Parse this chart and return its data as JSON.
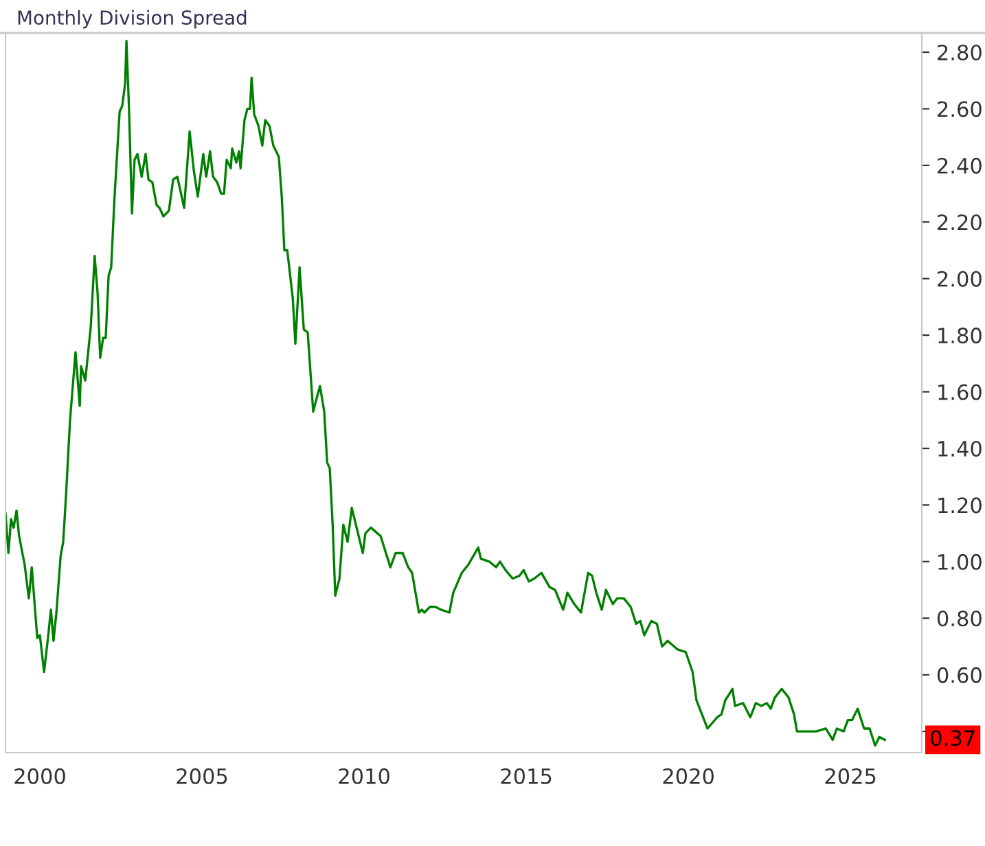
{
  "chart_data": {
    "type": "line",
    "title": "Monthly Division Spread",
    "x": [
      1998.94,
      1999.03,
      1999.11,
      1999.19,
      1999.28,
      1999.36,
      1999.53,
      1999.66,
      1999.75,
      1999.92,
      2000.0,
      2000.13,
      2000.25,
      2000.34,
      2000.42,
      2000.51,
      2000.64,
      2000.72,
      2000.81,
      2000.93,
      2001.1,
      2001.23,
      2001.27,
      2001.4,
      2001.57,
      2001.69,
      2001.78,
      2001.86,
      2001.95,
      2002.03,
      2002.12,
      2002.2,
      2002.29,
      2002.33,
      2002.46,
      2002.54,
      2002.63,
      2002.67,
      2002.75,
      2002.84,
      2002.92,
      2003.01,
      2003.14,
      2003.26,
      2003.35,
      2003.47,
      2003.6,
      2003.69,
      2003.81,
      2003.98,
      2004.11,
      2004.24,
      2004.45,
      2004.62,
      2004.75,
      2004.87,
      2005.04,
      2005.13,
      2005.25,
      2005.34,
      2005.47,
      2005.59,
      2005.68,
      2005.76,
      2005.89,
      2005.93,
      2006.06,
      2006.14,
      2006.19,
      2006.31,
      2006.4,
      2006.48,
      2006.53,
      2006.61,
      2006.74,
      2006.86,
      2006.95,
      2007.08,
      2007.2,
      2007.37,
      2007.46,
      2007.54,
      2007.63,
      2007.8,
      2007.88,
      2008.01,
      2008.14,
      2008.26,
      2008.43,
      2008.52,
      2008.64,
      2008.77,
      2008.86,
      2008.94,
      2009.03,
      2009.11,
      2009.24,
      2009.36,
      2009.49,
      2009.62,
      2009.79,
      2009.96,
      2010.04,
      2010.21,
      2010.51,
      2010.81,
      2010.97,
      2011.19,
      2011.36,
      2011.48,
      2011.69,
      2011.78,
      2011.86,
      2012.03,
      2012.2,
      2012.37,
      2012.63,
      2012.75,
      2013.01,
      2013.22,
      2013.52,
      2013.6,
      2013.86,
      2014.07,
      2014.19,
      2014.36,
      2014.58,
      2014.79,
      2014.92,
      2015.08,
      2015.25,
      2015.47,
      2015.72,
      2015.89,
      2016.14,
      2016.27,
      2016.48,
      2016.69,
      2016.91,
      2017.03,
      2017.16,
      2017.33,
      2017.46,
      2017.67,
      2017.8,
      2018.01,
      2018.22,
      2018.39,
      2018.52,
      2018.64,
      2018.86,
      2019.03,
      2019.19,
      2019.36,
      2019.66,
      2019.92,
      2020.13,
      2020.25,
      2020.59,
      2020.89,
      2021.02,
      2021.14,
      2021.36,
      2021.44,
      2021.69,
      2021.91,
      2022.08,
      2022.25,
      2022.42,
      2022.54,
      2022.67,
      2022.88,
      2023.09,
      2023.26,
      2023.35,
      2023.6,
      2023.81,
      2023.94,
      2024.24,
      2024.45,
      2024.58,
      2024.79,
      2024.92,
      2025.05,
      2025.22,
      2025.42,
      2025.59,
      2025.76,
      2025.89,
      2026.06
    ],
    "series": [
      {
        "color": "#008000",
        "values": [
          1.17,
          1.03,
          1.15,
          1.12,
          1.18,
          1.09,
          0.99,
          0.87,
          0.98,
          0.73,
          0.74,
          0.61,
          0.73,
          0.83,
          0.72,
          0.82,
          1.02,
          1.07,
          1.24,
          1.5,
          1.74,
          1.55,
          1.69,
          1.64,
          1.83,
          2.08,
          1.95,
          1.72,
          1.79,
          1.79,
          2.01,
          2.04,
          2.26,
          2.34,
          2.59,
          2.61,
          2.69,
          2.84,
          2.6,
          2.23,
          2.42,
          2.44,
          2.36,
          2.44,
          2.35,
          2.34,
          2.26,
          2.25,
          2.22,
          2.24,
          2.35,
          2.36,
          2.25,
          2.52,
          2.38,
          2.29,
          2.44,
          2.36,
          2.45,
          2.36,
          2.34,
          2.3,
          2.3,
          2.42,
          2.39,
          2.46,
          2.41,
          2.45,
          2.39,
          2.56,
          2.6,
          2.6,
          2.71,
          2.58,
          2.54,
          2.47,
          2.56,
          2.54,
          2.47,
          2.43,
          2.29,
          2.1,
          2.1,
          1.93,
          1.77,
          2.04,
          1.82,
          1.81,
          1.53,
          1.57,
          1.62,
          1.53,
          1.35,
          1.33,
          1.13,
          0.88,
          0.94,
          1.13,
          1.07,
          1.19,
          1.11,
          1.03,
          1.1,
          1.12,
          1.09,
          0.98,
          1.03,
          1.03,
          0.98,
          0.96,
          0.82,
          0.83,
          0.82,
          0.84,
          0.84,
          0.83,
          0.82,
          0.89,
          0.96,
          0.99,
          1.05,
          1.01,
          1.0,
          0.98,
          1.0,
          0.97,
          0.94,
          0.95,
          0.97,
          0.93,
          0.94,
          0.96,
          0.91,
          0.9,
          0.83,
          0.89,
          0.85,
          0.82,
          0.96,
          0.95,
          0.89,
          0.83,
          0.9,
          0.85,
          0.87,
          0.87,
          0.84,
          0.78,
          0.79,
          0.74,
          0.79,
          0.78,
          0.7,
          0.72,
          0.69,
          0.68,
          0.61,
          0.51,
          0.41,
          0.45,
          0.46,
          0.51,
          0.55,
          0.49,
          0.5,
          0.45,
          0.5,
          0.49,
          0.5,
          0.48,
          0.52,
          0.55,
          0.52,
          0.46,
          0.4,
          0.4,
          0.4,
          0.4,
          0.41,
          0.37,
          0.41,
          0.4,
          0.44,
          0.44,
          0.48,
          0.41,
          0.41,
          0.35,
          0.38,
          0.37
        ]
      }
    ],
    "xlim": [
      1998.94,
      2027.2
    ],
    "ylim": [
      0.325,
      2.868
    ],
    "xticks": [
      2000,
      2005,
      2010,
      2015,
      2020,
      2025
    ],
    "yticks": [
      {
        "value": 0.4,
        "label": null
      },
      {
        "value": 0.6,
        "label": "0.60"
      },
      {
        "value": 0.8,
        "label": "0.80"
      },
      {
        "value": 1.0,
        "label": "1.00"
      },
      {
        "value": 1.2,
        "label": "1.20"
      },
      {
        "value": 1.4,
        "label": "1.40"
      },
      {
        "value": 1.6,
        "label": "1.60"
      },
      {
        "value": 1.8,
        "label": "1.80"
      },
      {
        "value": 2.0,
        "label": "2.00"
      },
      {
        "value": 2.2,
        "label": "2.20"
      },
      {
        "value": 2.4,
        "label": "2.40"
      },
      {
        "value": 2.6,
        "label": "2.60"
      },
      {
        "value": 2.8,
        "label": "2.80"
      }
    ],
    "annotations": [
      {
        "text": "0.37",
        "y": 0.37
      }
    ],
    "grid": false,
    "legend": false,
    "marker": "none",
    "line_style": "solid"
  }
}
